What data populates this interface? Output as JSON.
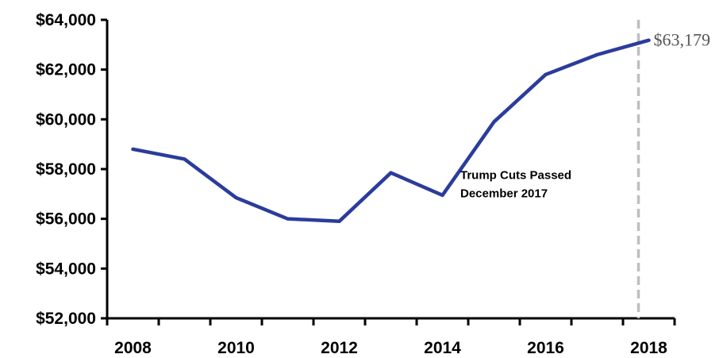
{
  "chart_data": {
    "type": "line",
    "title": "",
    "xlabel": "",
    "ylabel": "",
    "x": [
      2008,
      2009,
      2010,
      2011,
      2012,
      2013,
      2014,
      2015,
      2016,
      2017,
      2018
    ],
    "x_ticks": [
      "2008",
      "2010",
      "2012",
      "2014",
      "2016",
      "2018"
    ],
    "y_ticks": [
      "$52,000",
      "$54,000",
      "$56,000",
      "$58,000",
      "$60,000",
      "$62,000",
      "$64,000"
    ],
    "ylim": [
      52000,
      64000
    ],
    "xlim": [
      2007.5,
      2018.5
    ],
    "series": [
      {
        "color": "#2b3c9b",
        "values": [
          58800,
          58400,
          56850,
          56000,
          55900,
          57850,
          56950,
          59900,
          61800,
          62600,
          63179
        ]
      }
    ],
    "end_label": "$63,179",
    "marker_line": {
      "x": 2017.8,
      "color": "#bfbfbf",
      "style": "dashed"
    },
    "annotation": {
      "lines": [
        "Trump Cuts Passed",
        "December 2017"
      ],
      "x": 2015.5,
      "y": 57600
    },
    "grid": false,
    "legend": "none"
  }
}
